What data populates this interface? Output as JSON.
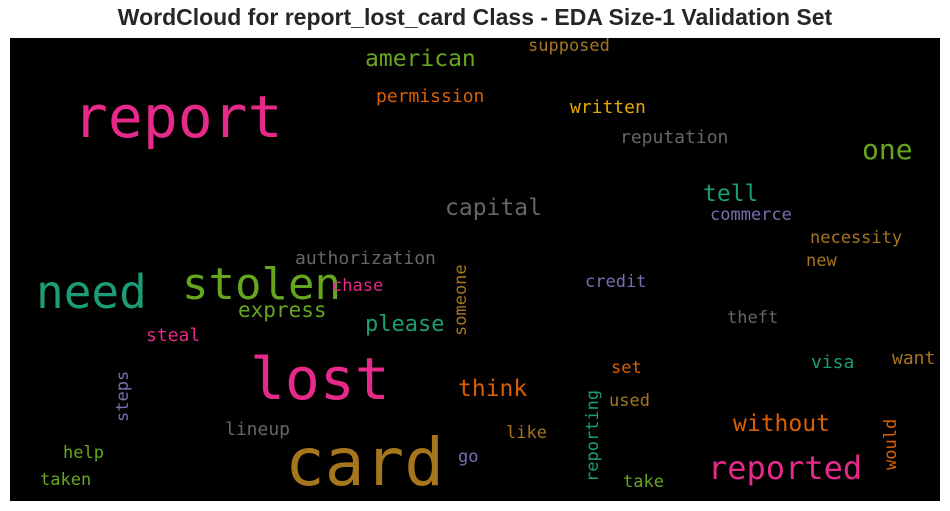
{
  "title": "WordCloud for report_lost_card Class - EDA Size-1 Validation Set",
  "background": "#000000",
  "words": [
    {
      "text": "card",
      "color": "#a6761d"
    },
    {
      "text": "report",
      "color": "#e7298a"
    },
    {
      "text": "lost",
      "color": "#e7298a"
    },
    {
      "text": "need",
      "color": "#1b9e77"
    },
    {
      "text": "stolen",
      "color": "#66a61e"
    },
    {
      "text": "reported",
      "color": "#e7298a"
    },
    {
      "text": "american",
      "color": "#66a61e"
    },
    {
      "text": "one",
      "color": "#66a61e"
    },
    {
      "text": "capital",
      "color": "#666666"
    },
    {
      "text": "tell",
      "color": "#1b9e77"
    },
    {
      "text": "please",
      "color": "#1b9e77"
    },
    {
      "text": "express",
      "color": "#66a61e"
    },
    {
      "text": "think",
      "color": "#d95f02"
    },
    {
      "text": "without",
      "color": "#d95f02"
    },
    {
      "text": "permission",
      "color": "#d95f02"
    },
    {
      "text": "supposed",
      "color": "#a6761d"
    },
    {
      "text": "written",
      "color": "#e6ab02"
    },
    {
      "text": "reputation",
      "color": "#666666"
    },
    {
      "text": "commerce",
      "color": "#7570b3"
    },
    {
      "text": "authorization",
      "color": "#666666"
    },
    {
      "text": "necessity",
      "color": "#a6761d"
    },
    {
      "text": "new",
      "color": "#a6761d"
    },
    {
      "text": "chase",
      "color": "#e7298a"
    },
    {
      "text": "credit",
      "color": "#7570b3"
    },
    {
      "text": "steal",
      "color": "#e7298a"
    },
    {
      "text": "theft",
      "color": "#666666"
    },
    {
      "text": "visa",
      "color": "#1b9e77"
    },
    {
      "text": "want",
      "color": "#a6761d"
    },
    {
      "text": "set",
      "color": "#d95f02"
    },
    {
      "text": "used",
      "color": "#a6761d"
    },
    {
      "text": "lineup",
      "color": "#666666"
    },
    {
      "text": "like",
      "color": "#a6761d"
    },
    {
      "text": "go",
      "color": "#7570b3"
    },
    {
      "text": "help",
      "color": "#66a61e"
    },
    {
      "text": "taken",
      "color": "#66a61e"
    },
    {
      "text": "take",
      "color": "#66a61e"
    },
    {
      "text": "someone",
      "color": "#a6761d"
    },
    {
      "text": "steps",
      "color": "#7570b3"
    },
    {
      "text": "reporting",
      "color": "#1b9e77"
    },
    {
      "text": "would",
      "color": "#d95f02"
    }
  ]
}
